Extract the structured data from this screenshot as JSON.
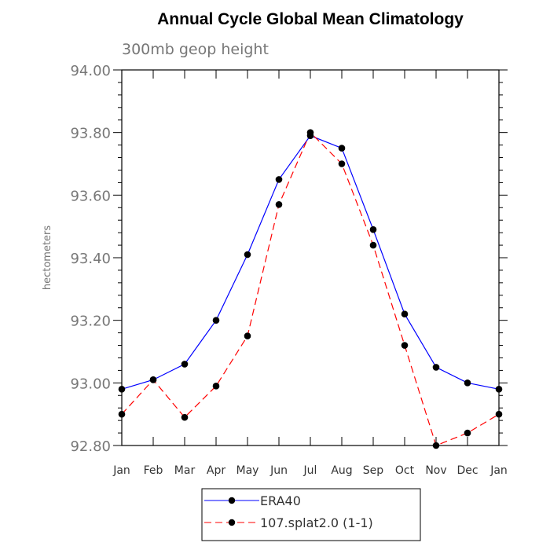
{
  "chart_data": {
    "type": "line",
    "title": "Annual Cycle Global Mean Climatology",
    "subtitle": "300mb geop height",
    "ylabel": "hectometers",
    "xlabel": "",
    "categories": [
      "Jan",
      "Feb",
      "Mar",
      "Apr",
      "May",
      "Jun",
      "Jul",
      "Aug",
      "Sep",
      "Oct",
      "Nov",
      "Dec",
      "Jan"
    ],
    "ylim": [
      92.8,
      94.0
    ],
    "yticks": [
      "92.80",
      "93.00",
      "93.20",
      "93.40",
      "93.60",
      "93.80",
      "94.00"
    ],
    "ytick_values": [
      92.8,
      93.0,
      93.2,
      93.4,
      93.6,
      93.8,
      94.0
    ],
    "grid": false,
    "legend_position": "bottom",
    "series": [
      {
        "name": "ERA40",
        "color": "#0000ff",
        "dash": "solid",
        "values": [
          92.98,
          93.01,
          93.06,
          93.2,
          93.41,
          93.65,
          93.79,
          93.75,
          93.49,
          93.22,
          93.05,
          93.0,
          92.98
        ]
      },
      {
        "name": "107.splat2.0 (1-1)",
        "color": "#ff0000",
        "dash": "dashed",
        "values": [
          92.9,
          93.01,
          92.89,
          92.99,
          93.15,
          93.57,
          93.8,
          93.7,
          93.44,
          93.12,
          92.8,
          92.84,
          92.9
        ]
      }
    ]
  }
}
